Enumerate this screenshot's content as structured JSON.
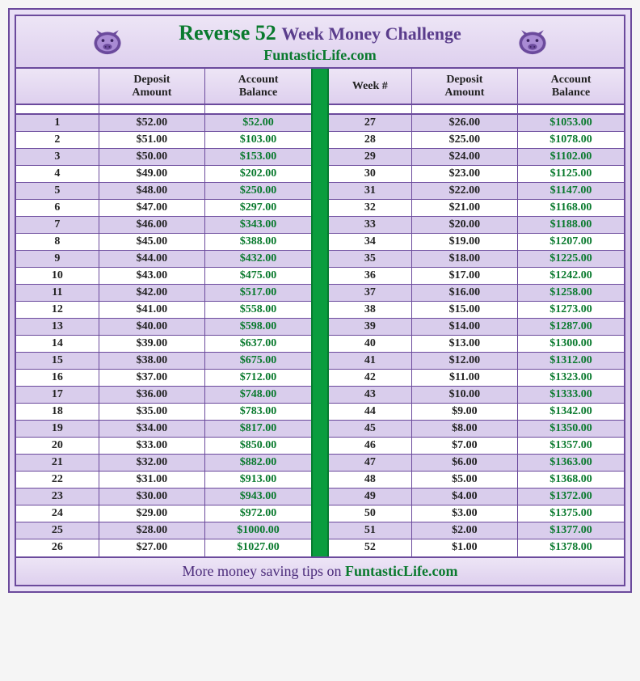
{
  "header": {
    "title_main": "Reverse 52",
    "title_sub": "Week Money Challenge",
    "site": "FuntasticLife.com",
    "icon_name": "piggy-bank-icon",
    "title_color_main": "#0a7a2e",
    "title_color_sub": "#5a3d8c",
    "title_fontsize_main": 26,
    "title_fontsize_sub": 22
  },
  "footer": {
    "prefix": "More money saving tips on ",
    "brand": "FuntasticLife.com"
  },
  "colors": {
    "border": "#6b4a9c",
    "header_bg_top": "#ede5f6",
    "header_bg_bottom": "#ded0ee",
    "row_odd": "#d9cdec",
    "row_even": "#ffffff",
    "balance_text": "#0a7a2e",
    "divider": "#0a9d3e",
    "outer_bg": "#e8dff5"
  },
  "table": {
    "columns_left": [
      "",
      "Deposit\nAmount",
      "Account\nBalance"
    ],
    "columns_right": [
      "Week #",
      "Deposit\nAmount",
      "Account\nBalance"
    ],
    "col_widths": [
      "28%",
      "36%",
      "36%"
    ],
    "rows_left": [
      {
        "week": "1",
        "deposit": "$52.00",
        "balance": "$52.00"
      },
      {
        "week": "2",
        "deposit": "$51.00",
        "balance": "$103.00"
      },
      {
        "week": "3",
        "deposit": "$50.00",
        "balance": "$153.00"
      },
      {
        "week": "4",
        "deposit": "$49.00",
        "balance": "$202.00"
      },
      {
        "week": "5",
        "deposit": "$48.00",
        "balance": "$250.00"
      },
      {
        "week": "6",
        "deposit": "$47.00",
        "balance": "$297.00"
      },
      {
        "week": "7",
        "deposit": "$46.00",
        "balance": "$343.00"
      },
      {
        "week": "8",
        "deposit": "$45.00",
        "balance": "$388.00"
      },
      {
        "week": "9",
        "deposit": "$44.00",
        "balance": "$432.00"
      },
      {
        "week": "10",
        "deposit": "$43.00",
        "balance": "$475.00"
      },
      {
        "week": "11",
        "deposit": "$42.00",
        "balance": "$517.00"
      },
      {
        "week": "12",
        "deposit": "$41.00",
        "balance": "$558.00"
      },
      {
        "week": "13",
        "deposit": "$40.00",
        "balance": "$598.00"
      },
      {
        "week": "14",
        "deposit": "$39.00",
        "balance": "$637.00"
      },
      {
        "week": "15",
        "deposit": "$38.00",
        "balance": "$675.00"
      },
      {
        "week": "16",
        "deposit": "$37.00",
        "balance": "$712.00"
      },
      {
        "week": "17",
        "deposit": "$36.00",
        "balance": "$748.00"
      },
      {
        "week": "18",
        "deposit": "$35.00",
        "balance": "$783.00"
      },
      {
        "week": "19",
        "deposit": "$34.00",
        "balance": "$817.00"
      },
      {
        "week": "20",
        "deposit": "$33.00",
        "balance": "$850.00"
      },
      {
        "week": "21",
        "deposit": "$32.00",
        "balance": "$882.00"
      },
      {
        "week": "22",
        "deposit": "$31.00",
        "balance": "$913.00"
      },
      {
        "week": "23",
        "deposit": "$30.00",
        "balance": "$943.00"
      },
      {
        "week": "24",
        "deposit": "$29.00",
        "balance": "$972.00"
      },
      {
        "week": "25",
        "deposit": "$28.00",
        "balance": "$1000.00"
      },
      {
        "week": "26",
        "deposit": "$27.00",
        "balance": "$1027.00"
      }
    ],
    "rows_right": [
      {
        "week": "27",
        "deposit": "$26.00",
        "balance": "$1053.00"
      },
      {
        "week": "28",
        "deposit": "$25.00",
        "balance": "$1078.00"
      },
      {
        "week": "29",
        "deposit": "$24.00",
        "balance": "$1102.00"
      },
      {
        "week": "30",
        "deposit": "$23.00",
        "balance": "$1125.00"
      },
      {
        "week": "31",
        "deposit": "$22.00",
        "balance": "$1147.00"
      },
      {
        "week": "32",
        "deposit": "$21.00",
        "balance": "$1168.00"
      },
      {
        "week": "33",
        "deposit": "$20.00",
        "balance": "$1188.00"
      },
      {
        "week": "34",
        "deposit": "$19.00",
        "balance": "$1207.00"
      },
      {
        "week": "35",
        "deposit": "$18.00",
        "balance": "$1225.00"
      },
      {
        "week": "36",
        "deposit": "$17.00",
        "balance": "$1242.00"
      },
      {
        "week": "37",
        "deposit": "$16.00",
        "balance": "$1258.00"
      },
      {
        "week": "38",
        "deposit": "$15.00",
        "balance": "$1273.00"
      },
      {
        "week": "39",
        "deposit": "$14.00",
        "balance": "$1287.00"
      },
      {
        "week": "40",
        "deposit": "$13.00",
        "balance": "$1300.00"
      },
      {
        "week": "41",
        "deposit": "$12.00",
        "balance": "$1312.00"
      },
      {
        "week": "42",
        "deposit": "$11.00",
        "balance": "$1323.00"
      },
      {
        "week": "43",
        "deposit": "$10.00",
        "balance": "$1333.00"
      },
      {
        "week": "44",
        "deposit": "$9.00",
        "balance": "$1342.00"
      },
      {
        "week": "45",
        "deposit": "$8.00",
        "balance": "$1350.00"
      },
      {
        "week": "46",
        "deposit": "$7.00",
        "balance": "$1357.00"
      },
      {
        "week": "47",
        "deposit": "$6.00",
        "balance": "$1363.00"
      },
      {
        "week": "48",
        "deposit": "$5.00",
        "balance": "$1368.00"
      },
      {
        "week": "49",
        "deposit": "$4.00",
        "balance": "$1372.00"
      },
      {
        "week": "50",
        "deposit": "$3.00",
        "balance": "$1375.00"
      },
      {
        "week": "51",
        "deposit": "$2.00",
        "balance": "$1377.00"
      },
      {
        "week": "52",
        "deposit": "$1.00",
        "balance": "$1378.00"
      }
    ]
  }
}
